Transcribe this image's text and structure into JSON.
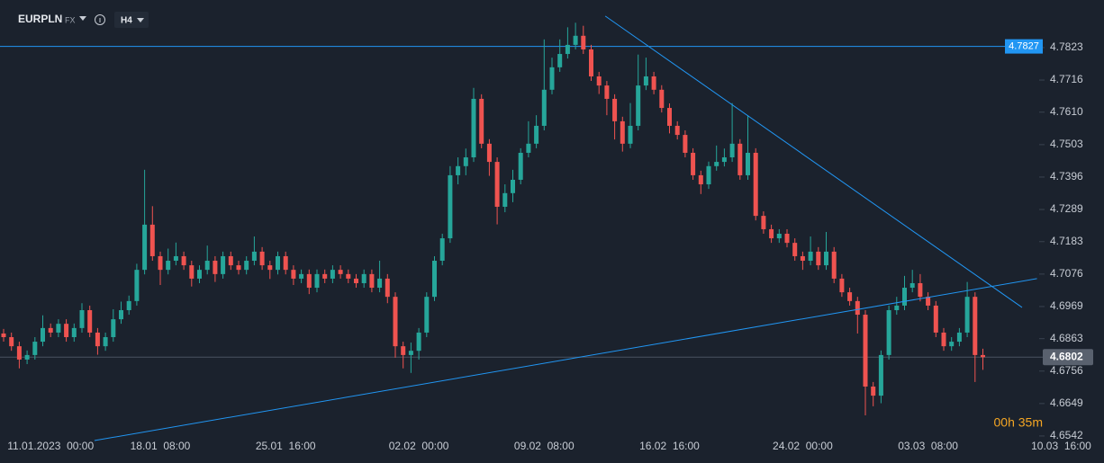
{
  "header": {
    "symbol": "EURPLN",
    "market": "FX",
    "interval": "H4"
  },
  "chart_data": {
    "type": "candlestick",
    "categories": [
      null,
      null,
      null,
      null,
      null,
      null,
      "11.01.2023  00:00",
      null,
      null,
      null,
      null,
      null,
      null,
      null,
      null,
      null,
      null,
      null,
      null,
      null,
      "18.01  08:00",
      null,
      null,
      null,
      null,
      null,
      null,
      null,
      null,
      null,
      null,
      null,
      null,
      null,
      null,
      null,
      "25.01  16:00",
      null,
      null,
      null,
      null,
      null,
      null,
      null,
      null,
      null,
      null,
      null,
      null,
      null,
      null,
      null,
      null,
      "02.02  00:00",
      null,
      null,
      null,
      null,
      null,
      null,
      null,
      null,
      null,
      null,
      null,
      null,
      null,
      null,
      null,
      "09.02  08:00",
      null,
      null,
      null,
      null,
      null,
      null,
      null,
      null,
      null,
      null,
      null,
      null,
      null,
      null,
      null,
      "16.02  16:00",
      null,
      null,
      null,
      null,
      null,
      null,
      null,
      null,
      null,
      null,
      null,
      null,
      null,
      null,
      null,
      null,
      "24.02  00:00",
      null,
      null,
      null,
      null,
      null,
      null,
      null,
      null,
      null,
      null,
      null,
      null,
      null,
      null,
      null,
      "03.03  08:00",
      null,
      null,
      null,
      null,
      null,
      null,
      null,
      null,
      null,
      null,
      null,
      null,
      null,
      null,
      null,
      null,
      "10.03  16:00"
    ],
    "open": [
      4.688,
      4.6868,
      4.6838,
      4.6794,
      4.6809,
      4.6853,
      4.6898,
      4.6883,
      4.6912,
      4.6868,
      4.6898,
      4.6957,
      4.6883,
      4.6838,
      4.6868,
      4.6927,
      4.6957,
      4.6987,
      4.709,
      4.7239,
      4.7135,
      4.709,
      4.712,
      4.7135,
      4.7105,
      4.7061,
      4.709,
      4.712,
      4.7076,
      4.7135,
      4.7105,
      4.709,
      4.712,
      4.715,
      4.7105,
      4.709,
      4.7135,
      4.709,
      4.7061,
      4.7076,
      4.7031,
      4.7076,
      4.7061,
      4.709,
      4.7076,
      4.7061,
      4.7046,
      4.7076,
      4.7031,
      4.7061,
      4.7001,
      4.6838,
      4.6809,
      4.6823,
      4.6883,
      4.7001,
      4.712,
      4.7194,
      4.7402,
      4.7432,
      4.7461,
      4.7654,
      4.7506,
      4.7446,
      4.7298,
      4.7343,
      4.7387,
      4.7476,
      4.7506,
      4.7565,
      4.7684,
      4.7758,
      4.7802,
      4.7832,
      4.7862,
      4.7817,
      4.7728,
      4.7698,
      4.7654,
      4.758,
      4.7506,
      4.7565,
      4.7698,
      4.7728,
      4.7684,
      4.7624,
      4.7565,
      4.7535,
      4.7476,
      4.7402,
      4.7372,
      4.7432,
      4.7446,
      4.7461,
      4.7506,
      4.7402,
      4.7476,
      4.7268,
      4.7224,
      4.7194,
      4.7209,
      4.7179,
      4.7135,
      4.712,
      4.715,
      4.7105,
      4.715,
      4.7061,
      4.7016,
      4.6987,
      4.6942,
      4.6705,
      4.6675,
      4.6809,
      4.6957,
      4.6972,
      4.7031,
      4.7046,
      4.7001,
      4.6972,
      4.6883,
      4.6838,
      4.6853,
      4.6883,
      4.7001,
      4.6809,
      null,
      null,
      null,
      null,
      null,
      null,
      null,
      null,
      null,
      null
    ],
    "high": [
      4.6895,
      4.6883,
      4.6853,
      4.6824,
      4.6868,
      4.694,
      4.6913,
      4.6927,
      4.6927,
      4.6913,
      4.698,
      4.6972,
      4.6898,
      4.6883,
      4.696,
      4.6985,
      4.7005,
      4.711,
      4.742,
      4.73,
      4.715,
      4.716,
      4.718,
      4.715,
      4.712,
      4.7105,
      4.717,
      4.7135,
      4.715,
      4.715,
      4.712,
      4.7135,
      4.72,
      4.7165,
      4.712,
      4.715,
      4.715,
      4.7105,
      4.7091,
      4.7091,
      4.7091,
      4.7091,
      4.7105,
      4.7105,
      4.7091,
      4.7076,
      4.7091,
      4.7091,
      4.712,
      4.7076,
      4.7016,
      4.6853,
      4.685,
      4.6898,
      4.7016,
      4.7135,
      4.7209,
      4.7432,
      4.7461,
      4.749,
      4.769,
      4.7669,
      4.7521,
      4.7461,
      4.7372,
      4.742,
      4.7491,
      4.758,
      4.76,
      4.785,
      4.779,
      4.785,
      4.789,
      4.7905,
      4.7895,
      4.7832,
      4.7743,
      4.7713,
      4.7669,
      4.7595,
      4.764,
      4.78,
      4.779,
      4.7743,
      4.7699,
      4.7639,
      4.758,
      4.755,
      4.7491,
      4.7417,
      4.7447,
      4.75,
      4.749,
      4.764,
      4.7521,
      4.76,
      4.7491,
      4.7283,
      4.7239,
      4.7224,
      4.7224,
      4.7194,
      4.715,
      4.72,
      4.7165,
      4.7215,
      4.7165,
      4.7076,
      4.7031,
      4.7001,
      4.6957,
      4.672,
      4.6824,
      4.6972,
      4.7001,
      4.707,
      4.709,
      4.7076,
      4.7016,
      4.6987,
      4.6898,
      4.6868,
      4.6898,
      4.705,
      4.7016,
      4.683,
      null,
      null,
      null,
      null,
      null,
      null,
      null,
      null,
      null,
      null
    ],
    "low": [
      4.6853,
      4.6823,
      4.6765,
      4.6779,
      4.6794,
      4.6838,
      4.6868,
      4.6868,
      4.6853,
      4.6853,
      4.6883,
      4.6868,
      4.681,
      4.6823,
      4.6853,
      4.6912,
      4.6942,
      4.6972,
      4.7075,
      4.712,
      4.704,
      4.7075,
      4.7105,
      4.709,
      4.7035,
      4.7046,
      4.7075,
      4.705,
      4.7061,
      4.709,
      4.7075,
      4.7075,
      4.7105,
      4.709,
      4.706,
      4.7075,
      4.7075,
      4.704,
      4.7046,
      4.701,
      4.7016,
      4.7046,
      4.7046,
      4.7061,
      4.7046,
      4.7031,
      4.7031,
      4.7016,
      4.7016,
      4.698,
      4.68,
      4.6765,
      4.675,
      4.6794,
      4.6868,
      4.6987,
      4.7105,
      4.7179,
      4.7372,
      4.7402,
      4.7446,
      4.7491,
      4.74,
      4.724,
      4.728,
      4.7313,
      4.7372,
      4.7461,
      4.7491,
      4.755,
      4.7669,
      4.7743,
      4.7787,
      4.7817,
      4.7802,
      4.7713,
      4.767,
      4.76,
      4.752,
      4.748,
      4.7491,
      4.755,
      4.7683,
      4.7669,
      4.7609,
      4.754,
      4.752,
      4.7461,
      4.7387,
      4.734,
      4.7357,
      4.7417,
      4.7431,
      4.7446,
      4.7387,
      4.7387,
      4.7253,
      4.7209,
      4.7179,
      4.7179,
      4.7164,
      4.712,
      4.709,
      4.7105,
      4.709,
      4.709,
      4.7046,
      4.7001,
      4.6972,
      4.688,
      4.661,
      4.664,
      4.665,
      4.6794,
      4.6942,
      4.6957,
      4.7016,
      4.6986,
      4.6957,
      4.6868,
      4.6823,
      4.6823,
      4.6838,
      4.6868,
      4.672,
      4.676,
      null,
      null,
      null,
      null,
      null,
      null,
      null,
      null,
      null,
      null
    ],
    "close": [
      4.6868,
      4.6838,
      4.6794,
      4.6809,
      4.6853,
      4.6898,
      4.6883,
      4.6912,
      4.6868,
      4.6898,
      4.6957,
      4.6883,
      4.6838,
      4.6868,
      4.6927,
      4.6957,
      4.6987,
      4.709,
      4.7239,
      4.7135,
      4.709,
      4.712,
      4.7135,
      4.7105,
      4.7061,
      4.709,
      4.712,
      4.7076,
      4.7135,
      4.7105,
      4.709,
      4.712,
      4.715,
      4.7105,
      4.709,
      4.7135,
      4.709,
      4.7061,
      4.7076,
      4.7031,
      4.7076,
      4.7061,
      4.709,
      4.7076,
      4.7061,
      4.7046,
      4.7076,
      4.7031,
      4.7061,
      4.7001,
      4.6838,
      4.6809,
      4.6823,
      4.6883,
      4.7001,
      4.712,
      4.7194,
      4.7402,
      4.7432,
      4.7461,
      4.7654,
      4.7506,
      4.7446,
      4.7298,
      4.7343,
      4.7387,
      4.7476,
      4.7506,
      4.7565,
      4.7684,
      4.7758,
      4.7802,
      4.7832,
      4.7862,
      4.7817,
      4.7728,
      4.7698,
      4.7654,
      4.758,
      4.7506,
      4.7565,
      4.7698,
      4.7728,
      4.7684,
      4.7624,
      4.7565,
      4.7535,
      4.7476,
      4.7402,
      4.7372,
      4.7432,
      4.7446,
      4.7461,
      4.7506,
      4.7402,
      4.7476,
      4.7268,
      4.7224,
      4.7194,
      4.7209,
      4.7179,
      4.7135,
      4.712,
      4.715,
      4.7105,
      4.715,
      4.7061,
      4.7016,
      4.6987,
      4.6942,
      4.6705,
      4.6675,
      4.6809,
      4.6957,
      4.6972,
      4.7031,
      4.7046,
      4.7001,
      4.6972,
      4.6883,
      4.6838,
      4.6853,
      4.6883,
      4.7001,
      4.6809,
      4.6802,
      null,
      null,
      null,
      null,
      null,
      null,
      null,
      null,
      null,
      null
    ],
    "up_color": "#26a69a",
    "down_color": "#ef5350",
    "ylim": [
      4.6527,
      4.798
    ],
    "yticks": [
      4.7823,
      4.7716,
      {
        "value": 4.761,
        "label": "4.7610"
      },
      4.7503,
      4.7396,
      4.7289,
      4.7183,
      4.7076,
      4.6969,
      4.6863,
      4.6756,
      4.6649,
      4.6542
    ],
    "horizontal_line": 4.7827,
    "current_price": 4.6802,
    "line_color": "#2196f3",
    "trend_lines": [
      {
        "x": [
          76.8,
          130
        ],
        "y": [
          4.7927,
          4.6966
        ]
      },
      {
        "x": [
          11.6,
          131.9
        ],
        "y": [
          4.6527,
          4.7061
        ]
      }
    ],
    "countdown": "00h 35m"
  }
}
